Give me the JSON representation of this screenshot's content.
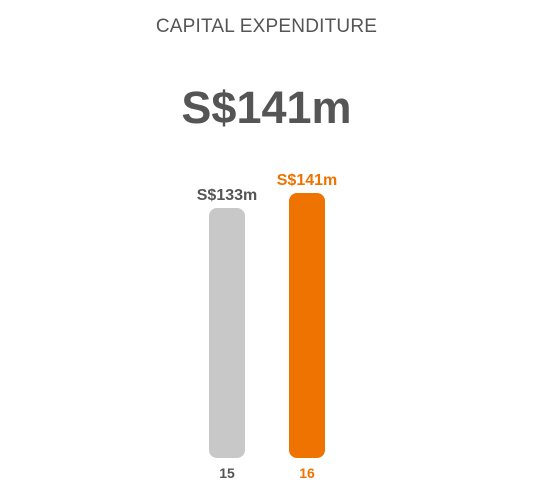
{
  "chart_data": {
    "type": "bar",
    "title": "CAPITAL EXPENDITURE",
    "headline_value": "S$141m",
    "categories": [
      "15",
      "16"
    ],
    "values": [
      133,
      141
    ],
    "value_labels": [
      "S$133m",
      "S$141m"
    ],
    "colors": [
      "#c8c8c8",
      "#ee7300"
    ],
    "label_colors": [
      "#555555",
      "#ee7300"
    ],
    "xlabel": "",
    "ylabel": "",
    "grid": false
  }
}
